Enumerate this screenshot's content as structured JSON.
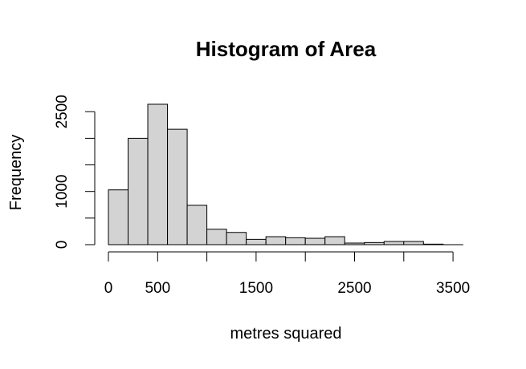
{
  "chart_data": {
    "type": "bar",
    "title": "Histogram of Area",
    "xlabel": "metres squared",
    "ylabel": "Frequency",
    "bin_edges": [
      0,
      200,
      400,
      600,
      800,
      1000,
      1200,
      1400,
      1600,
      1800,
      2000,
      2200,
      2400,
      2600,
      2800,
      3000,
      3200,
      3400,
      3600
    ],
    "values": [
      1030,
      2000,
      2640,
      2170,
      740,
      290,
      230,
      100,
      150,
      130,
      120,
      150,
      30,
      40,
      60,
      60,
      10,
      0
    ],
    "xlim": [
      0,
      3600
    ],
    "ylim": [
      0,
      2600
    ],
    "x_ticks": [
      0,
      500,
      1000,
      1500,
      2000,
      2500,
      3000,
      3500
    ],
    "x_tick_labels": [
      "0",
      "500",
      "",
      "1500",
      "",
      "2500",
      "",
      "3500"
    ],
    "y_ticks": [
      0,
      500,
      1000,
      1500,
      2000,
      2500
    ],
    "y_tick_labels": [
      "0",
      "",
      "1000",
      "",
      "",
      "2500"
    ],
    "bar_fill": "#d3d3d3",
    "bar_stroke": "#000000",
    "grid": false,
    "legend": "none"
  }
}
